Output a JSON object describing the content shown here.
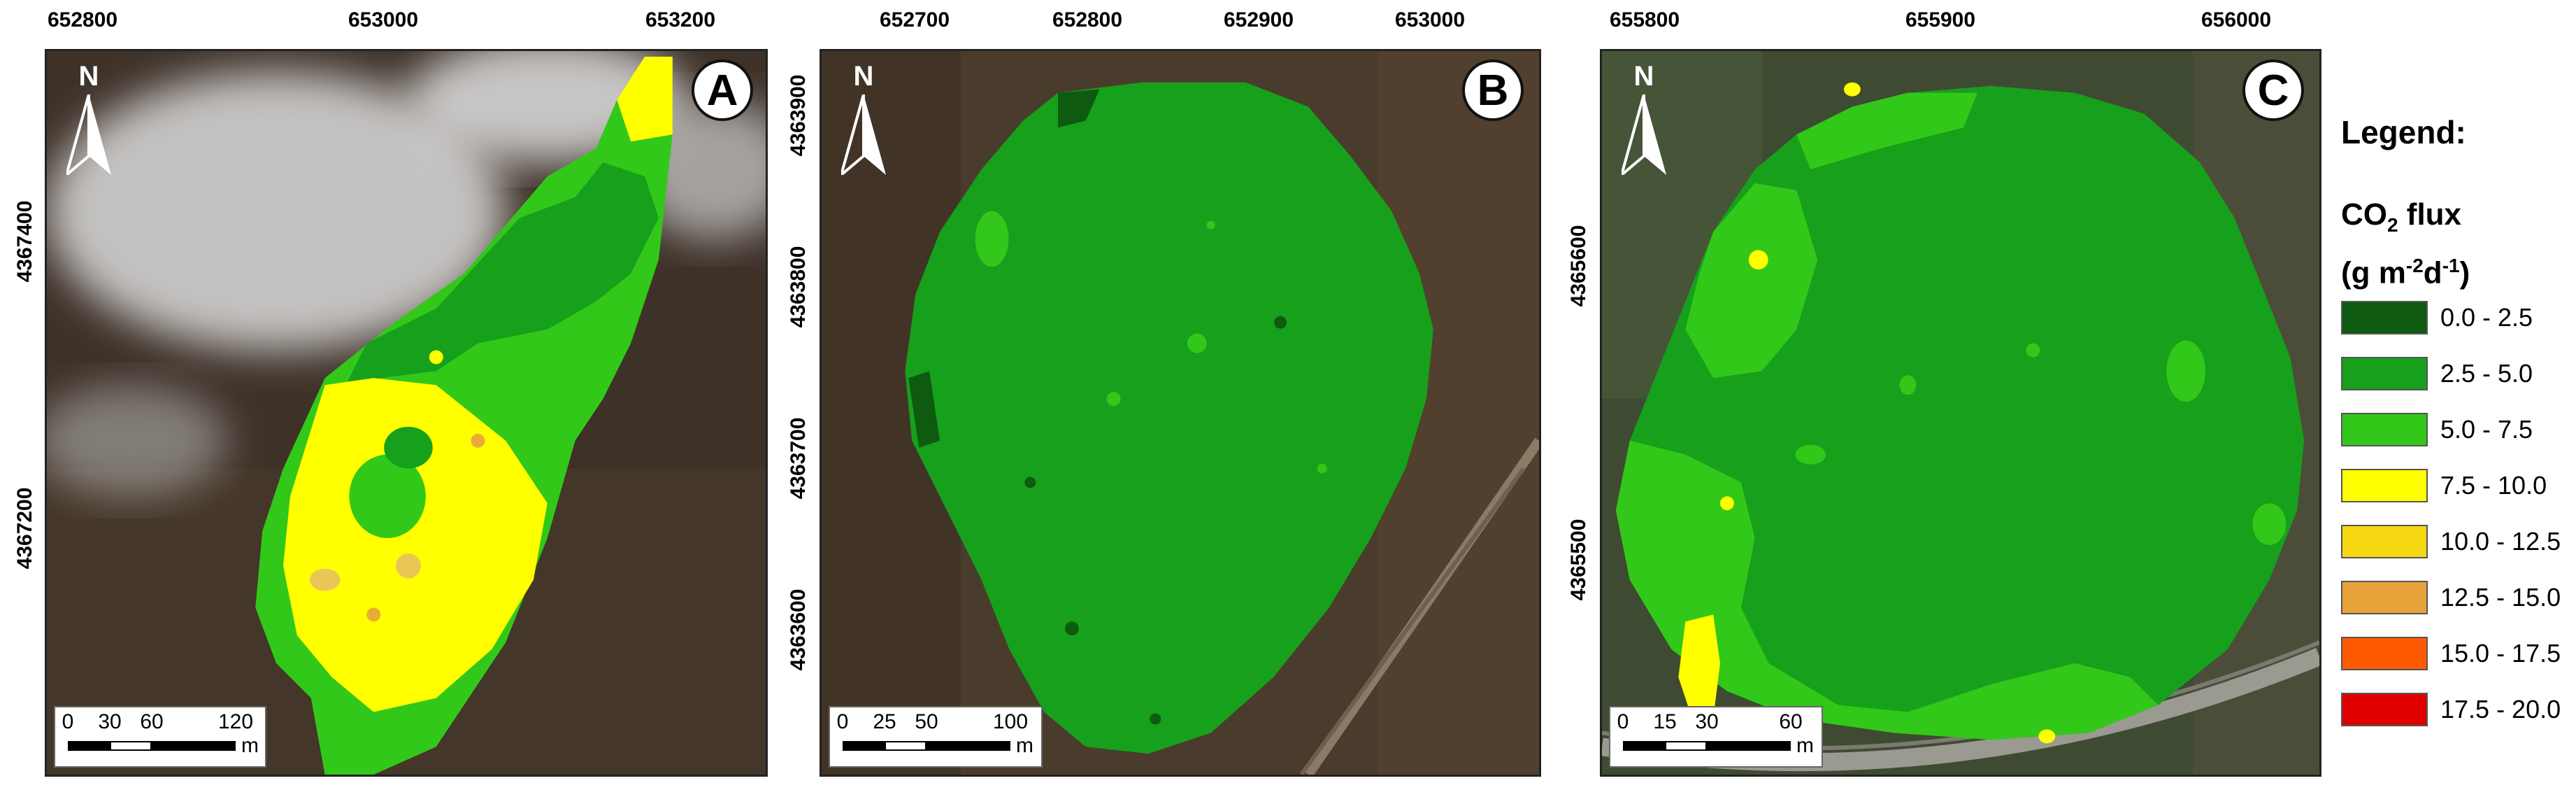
{
  "colors": {
    "class_0": "#0d5a10",
    "class_1": "#17a01b",
    "class_2": "#32c81a",
    "class_3": "#ffff00",
    "class_4": "#f5d712",
    "class_5": "#e8a23a",
    "class_6": "#ff5a00",
    "class_7": "#e00000",
    "ground": "#3b3027",
    "cloud": "#d8d8d8"
  },
  "panels": [
    {
      "label": "A",
      "north": "N",
      "x_ticks": [
        "652800",
        "653000",
        "653200"
      ],
      "y_ticks": [
        "4367400",
        "4367200"
      ],
      "scale": {
        "labels": [
          "0",
          "30",
          "60",
          "120"
        ],
        "unit": "m"
      }
    },
    {
      "label": "B",
      "north": "N",
      "x_ticks": [
        "652700",
        "652800",
        "652900",
        "653000"
      ],
      "y_ticks": [
        "4363900",
        "4363800",
        "4363700",
        "4363600"
      ],
      "scale": {
        "labels": [
          "0",
          "25",
          "50",
          "100"
        ],
        "unit": "m"
      }
    },
    {
      "label": "C",
      "north": "N",
      "x_ticks": [
        "655800",
        "655900",
        "656000"
      ],
      "y_ticks": [
        "4365600",
        "4365500"
      ],
      "scale": {
        "labels": [
          "0",
          "15",
          "30",
          "60"
        ],
        "unit": "m"
      }
    }
  ],
  "legend": {
    "title": "Legend:",
    "subtitle_main": "CO",
    "subtitle_sub": "2",
    "subtitle_rest": " flux",
    "unit_open": "(g m",
    "unit_sup1": "-2",
    "unit_mid": "d",
    "unit_sup2": "-1",
    "unit_close": ")",
    "classes": [
      {
        "label": "0.0 - 2.5",
        "color": "#0d5a10"
      },
      {
        "label": "2.5 - 5.0",
        "color": "#17a01b"
      },
      {
        "label": "5.0 - 7.5",
        "color": "#32c81a"
      },
      {
        "label": "7.5 - 10.0",
        "color": "#ffff00"
      },
      {
        "label": "10.0 - 12.5",
        "color": "#f5d712"
      },
      {
        "label": "12.5 - 15.0",
        "color": "#e8a23a"
      },
      {
        "label": "15.0 - 17.5",
        "color": "#ff5a00"
      },
      {
        "label": "17.5 - 20.0",
        "color": "#e00000"
      }
    ]
  }
}
